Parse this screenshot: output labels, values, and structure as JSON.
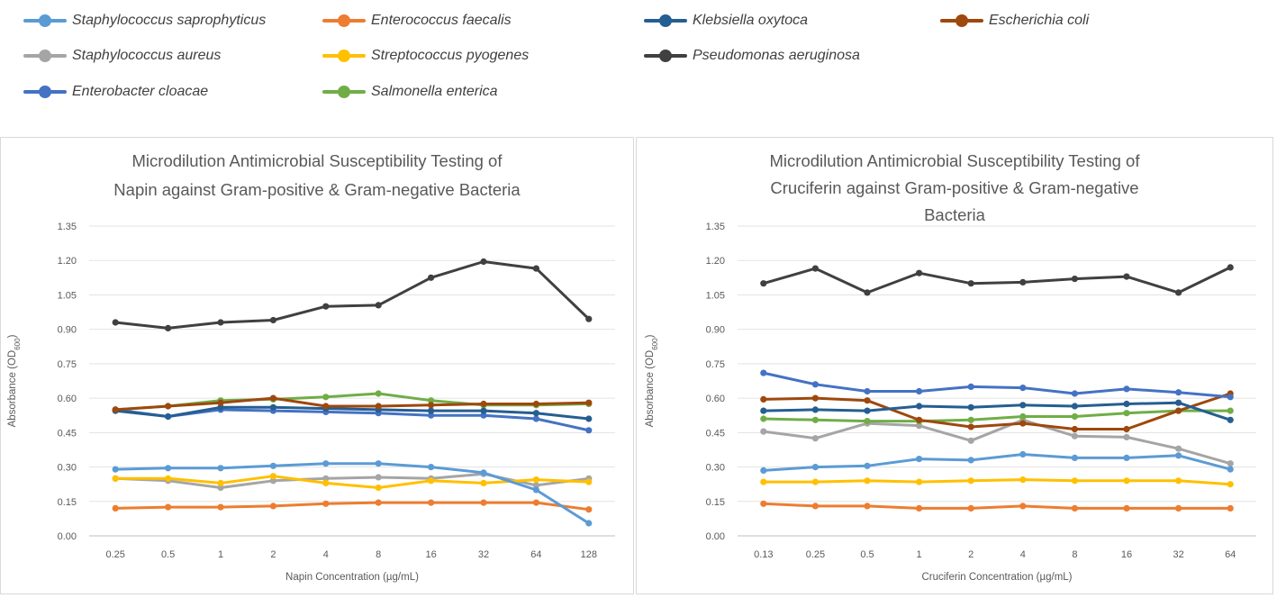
{
  "legend": {
    "entries": [
      {
        "name": "Staphylococcus saprophyticus",
        "color": "#5b9bd5"
      },
      {
        "name": "Enterococcus faecalis",
        "color": "#ed7d31"
      },
      {
        "name": "Klebsiella oxytoca",
        "color": "#255e91"
      },
      {
        "name": "Escherichia coli",
        "color": "#9e480e"
      },
      {
        "name": "Staphylococcus aureus",
        "color": "#a5a5a5"
      },
      {
        "name": "Streptococcus pyogenes",
        "color": "#ffc000"
      },
      {
        "name": "Pseudomonas aeruginosa",
        "color": "#404040"
      },
      {
        "name": "Enterobacter cloacae",
        "color": "#4472c4"
      },
      {
        "name": "Salmonella enterica",
        "color": "#70ad47"
      }
    ]
  },
  "chart_data": [
    {
      "type": "line",
      "title": [
        "Microdilution Antimicrobial Susceptibility Testing of",
        "Napin against Gram-positive & Gram-negative Bacteria"
      ],
      "xlabel": "Napin Concentration (µg/mL)",
      "ylabel": "Absorbance (OD",
      "ylabel_sub": "600",
      "ylabel_close": ")",
      "categories": [
        "0.25",
        "0.5",
        "1",
        "2",
        "4",
        "8",
        "16",
        "32",
        "64",
        "128"
      ],
      "ylim": [
        0,
        1.35
      ],
      "yticks": [
        "0.00",
        "0.15",
        "0.30",
        "0.45",
        "0.60",
        "0.75",
        "0.90",
        "1.05",
        "1.20",
        "1.35"
      ],
      "series": [
        {
          "name": "Staphylococcus aureus",
          "color": "#a5a5a5",
          "values": [
            0.25,
            0.24,
            0.21,
            0.24,
            0.25,
            0.255,
            0.25,
            0.27,
            0.22,
            0.25
          ]
        },
        {
          "name": "Streptococcus pyogenes",
          "color": "#ffc000",
          "values": [
            0.25,
            0.25,
            0.23,
            0.26,
            0.23,
            0.21,
            0.24,
            0.23,
            0.245,
            0.235
          ]
        },
        {
          "name": "Enterococcus faecalis",
          "color": "#ed7d31",
          "values": [
            0.12,
            0.125,
            0.125,
            0.13,
            0.14,
            0.145,
            0.145,
            0.145,
            0.145,
            0.115
          ]
        },
        {
          "name": "Staphylococcus saprophyticus",
          "color": "#5b9bd5",
          "values": [
            0.29,
            0.295,
            0.295,
            0.305,
            0.315,
            0.315,
            0.3,
            0.275,
            0.2,
            0.055
          ]
        },
        {
          "name": "Salmonella enterica",
          "color": "#70ad47",
          "values": [
            0.55,
            0.565,
            0.59,
            0.595,
            0.605,
            0.62,
            0.59,
            0.57,
            0.57,
            0.575
          ]
        },
        {
          "name": "Enterobacter cloacae",
          "color": "#4472c4",
          "values": [
            0.55,
            0.52,
            0.55,
            0.545,
            0.54,
            0.535,
            0.525,
            0.525,
            0.51,
            0.46
          ]
        },
        {
          "name": "Klebsiella oxytoca",
          "color": "#255e91",
          "values": [
            0.545,
            0.52,
            0.56,
            0.56,
            0.555,
            0.55,
            0.545,
            0.545,
            0.535,
            0.51
          ]
        },
        {
          "name": "Escherichia coli",
          "color": "#9e480e",
          "values": [
            0.55,
            0.565,
            0.58,
            0.6,
            0.565,
            0.565,
            0.57,
            0.575,
            0.575,
            0.58
          ]
        },
        {
          "name": "Pseudomonas aeruginosa",
          "color": "#404040",
          "values": [
            0.93,
            0.905,
            0.93,
            0.94,
            1.0,
            1.005,
            1.125,
            1.195,
            1.165,
            0.945
          ]
        }
      ]
    },
    {
      "type": "line",
      "title": [
        "Microdilution Antimicrobial Susceptibility Testing of",
        "Cruciferin against Gram-positive & Gram-negative",
        "Bacteria"
      ],
      "xlabel": "Cruciferin Concentration (µg/mL)",
      "ylabel": "Absorbance (OD",
      "ylabel_sub": "600",
      "ylabel_close": ")",
      "categories": [
        "0.13",
        "0.25",
        "0.5",
        "1",
        "2",
        "4",
        "8",
        "16",
        "32",
        "64"
      ],
      "ylim": [
        0,
        1.35
      ],
      "yticks": [
        "0.00",
        "0.15",
        "0.30",
        "0.45",
        "0.60",
        "0.75",
        "0.90",
        "1.05",
        "1.20",
        "1.35"
      ],
      "series": [
        {
          "name": "Staphylococcus aureus",
          "color": "#a5a5a5",
          "values": [
            0.455,
            0.425,
            0.49,
            0.48,
            0.415,
            0.505,
            0.435,
            0.43,
            0.38,
            0.315
          ]
        },
        {
          "name": "Enterococcus faecalis",
          "color": "#ed7d31",
          "values": [
            0.14,
            0.13,
            0.13,
            0.12,
            0.12,
            0.13,
            0.12,
            0.12,
            0.12,
            0.12
          ]
        },
        {
          "name": "Streptococcus pyogenes",
          "color": "#ffc000",
          "values": [
            0.235,
            0.235,
            0.24,
            0.235,
            0.24,
            0.245,
            0.24,
            0.24,
            0.24,
            0.225
          ]
        },
        {
          "name": "Staphylococcus saprophyticus",
          "color": "#5b9bd5",
          "values": [
            0.285,
            0.3,
            0.305,
            0.335,
            0.33,
            0.355,
            0.34,
            0.34,
            0.35,
            0.29
          ]
        },
        {
          "name": "Salmonella enterica",
          "color": "#70ad47",
          "values": [
            0.51,
            0.505,
            0.5,
            0.5,
            0.505,
            0.52,
            0.52,
            0.535,
            0.545,
            0.545
          ]
        },
        {
          "name": "Escherichia coli",
          "color": "#9e480e",
          "values": [
            0.595,
            0.6,
            0.59,
            0.505,
            0.475,
            0.49,
            0.465,
            0.465,
            0.545,
            0.62
          ]
        },
        {
          "name": "Klebsiella oxytoca",
          "color": "#255e91",
          "values": [
            0.545,
            0.55,
            0.545,
            0.565,
            0.56,
            0.57,
            0.565,
            0.575,
            0.58,
            0.505
          ]
        },
        {
          "name": "Enterobacter cloacae",
          "color": "#4472c4",
          "values": [
            0.71,
            0.66,
            0.63,
            0.63,
            0.65,
            0.645,
            0.62,
            0.64,
            0.625,
            0.605
          ]
        },
        {
          "name": "Pseudomonas aeruginosa",
          "color": "#404040",
          "values": [
            1.1,
            1.165,
            1.06,
            1.145,
            1.1,
            1.105,
            1.12,
            1.13,
            1.06,
            1.17
          ]
        }
      ]
    }
  ]
}
